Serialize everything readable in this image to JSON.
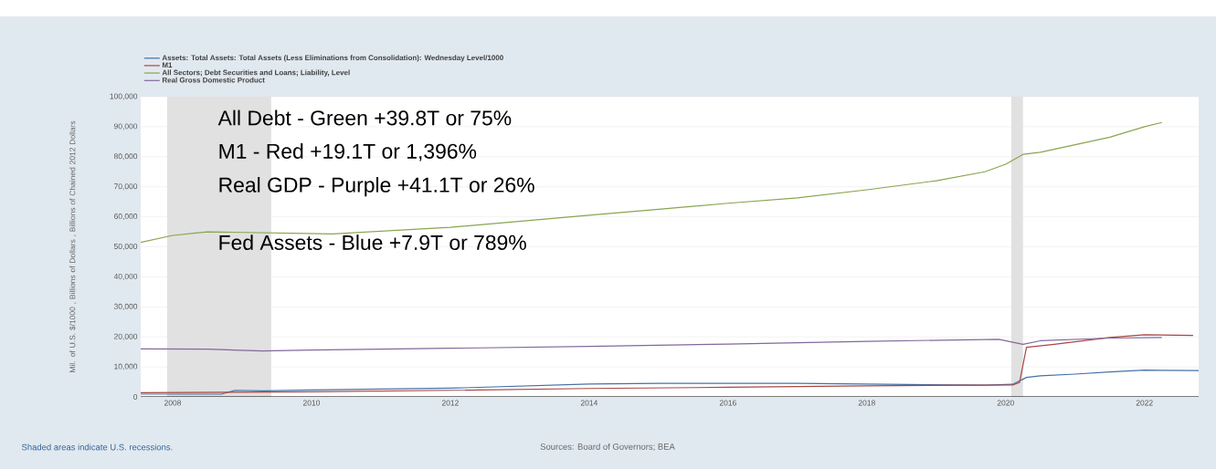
{
  "chart_data": {
    "type": "line",
    "ylabel": "Mil. of U.S. $/1000 , Billions of Dollars , Billions of Chained 2012 Dollars",
    "xlim": [
      2007.54,
      2022.78
    ],
    "xticks": [
      2008,
      2010,
      2012,
      2014,
      2016,
      2018,
      2020,
      2022
    ],
    "ylim": [
      0,
      100000
    ],
    "yticks": [
      {
        "value": 0,
        "label": "0"
      },
      {
        "value": 10000,
        "label": "10,000"
      },
      {
        "value": 20000,
        "label": "20,000"
      },
      {
        "value": 30000,
        "label": "30,000"
      },
      {
        "value": 40000,
        "label": "40,000"
      },
      {
        "value": 50000,
        "label": "50,000"
      },
      {
        "value": 60000,
        "label": "60,000"
      },
      {
        "value": 70000,
        "label": "70,000"
      },
      {
        "value": 80000,
        "label": "80,000"
      },
      {
        "value": 90000,
        "label": "90,000"
      },
      {
        "value": 100000,
        "label": "100,000"
      }
    ],
    "grid": "y",
    "legend": "top left",
    "marker": "none",
    "line_style": "solid",
    "series": [
      {
        "name": "Assets: Total Assets: Total Assets (Less Eliminations from Consolidation): Wednesday Level/1000",
        "color": "#4572a7",
        "x": [
          2007.54,
          2008.7,
          2008.9,
          2009.3,
          2010,
          2012,
          2014,
          2015,
          2017,
          2019.7,
          2020.1,
          2020.3,
          2020.5,
          2021,
          2021.5,
          2022,
          2022.78
        ],
        "values": [
          900,
          900,
          2200,
          2000,
          2300,
          2900,
          4300,
          4500,
          4500,
          3900,
          4200,
          6500,
          7000,
          7600,
          8300,
          8900,
          8800
        ]
      },
      {
        "name": "M1",
        "color": "#aa4643",
        "x": [
          2007.54,
          2010,
          2012,
          2014,
          2016,
          2018,
          2020.1,
          2020.2,
          2020.3,
          2020.7,
          2021.5,
          2022,
          2022.7
        ],
        "values": [
          1400,
          1700,
          2200,
          2800,
          3200,
          3700,
          4000,
          4800,
          16500,
          17500,
          19800,
          20700,
          20500
        ]
      },
      {
        "name": "All Sectors; Debt Securities and Loans; Liability, Level",
        "color": "#89a54e",
        "x": [
          2007.54,
          2008,
          2008.5,
          2010.3,
          2012,
          2014,
          2015,
          2016,
          2017,
          2018,
          2019,
          2019.7,
          2020,
          2020.25,
          2020.5,
          2021,
          2021.5,
          2022,
          2022.25
        ],
        "values": [
          51500,
          53800,
          55000,
          54300,
          56500,
          60500,
          62500,
          64500,
          66300,
          69000,
          72000,
          75000,
          77500,
          80800,
          81500,
          84000,
          86500,
          90000,
          91400
        ]
      },
      {
        "name": "Real Gross Domestic Product",
        "color": "#80699b",
        "x": [
          2007.54,
          2008.5,
          2009.3,
          2010,
          2012,
          2014,
          2016,
          2018,
          2019.9,
          2020.25,
          2020.5,
          2021.5,
          2022.25
        ],
        "values": [
          16000,
          15900,
          15300,
          15600,
          16200,
          16800,
          17600,
          18500,
          19200,
          17500,
          18700,
          19600,
          19800
        ]
      }
    ],
    "bands": [
      {
        "axis": "x",
        "from": 2007.92,
        "to": 2009.42,
        "color": "#e1e1e1"
      },
      {
        "axis": "x",
        "from": 2020.08,
        "to": 2020.25,
        "color": "#e1e1e1"
      }
    ],
    "annotations": [
      "All Debt - Green +39.8T or 75%",
      "M1 - Red +19.1T or 1,396%",
      "Real GDP - Purple +41.1T or 26%",
      "Fed Assets - Blue +7.9T or 789%",
      "Shaded areas indicate U.S. recessions.",
      "Sources: Board of Governors; BEA"
    ]
  }
}
